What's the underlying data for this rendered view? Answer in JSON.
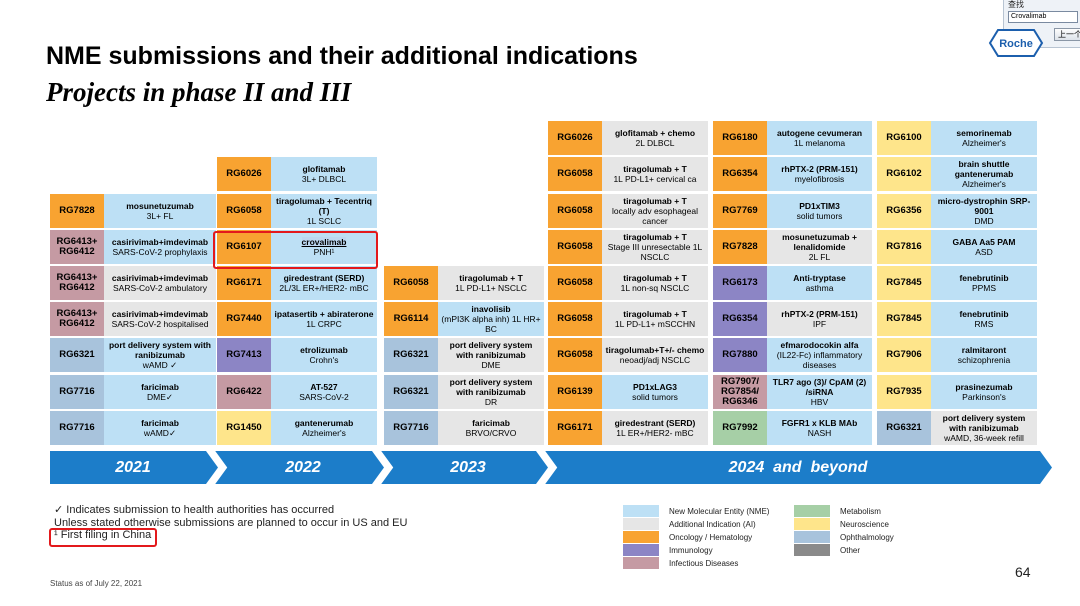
{
  "slide": {
    "title": "NME submissions and their additional indications",
    "subtitle": "Projects in phase II and III",
    "page_number": "64",
    "status": "Status as of July 22, 2021"
  },
  "find_toolbar": {
    "label": "查找",
    "query": "Crovalimab",
    "prev_button": "上一个"
  },
  "logo": {
    "text": "Roche"
  },
  "colors": {
    "nme": "#bde0f5",
    "ai": "#e6e6e6",
    "oncology": "#f8a331",
    "immunology": "#8c85c5",
    "infectious": "#c59aa3",
    "metabolism": "#a6cfa6",
    "neuroscience": "#fee58b",
    "ophthalmology": "#a8c3dc",
    "other": "#8a8a8a",
    "timeline": "#1c7dc9",
    "highlight": "#e3191c"
  },
  "timeline": [
    "2021",
    "2022",
    "2023",
    "2024  and  beyond"
  ],
  "col2021": [
    {
      "code": "RG7828",
      "name": "mosunetuzumab",
      "detail": "3L+ FL",
      "area": "oncology",
      "kind": "nme"
    },
    {
      "code": "RG6413+ RG6412",
      "name": "casirivimab+imdevimab",
      "detail": "SARS-CoV-2 prophylaxis",
      "area": "infectious",
      "kind": "nme"
    },
    {
      "code": "RG6413+ RG6412",
      "name": "casirivimab+imdevimab",
      "detail": "SARS-CoV-2 ambulatory",
      "area": "infectious",
      "kind": "ai"
    },
    {
      "code": "RG6413+ RG6412",
      "name": "casirivimab+imdevimab",
      "detail": "SARS-CoV-2 hospitalised",
      "area": "infectious",
      "kind": "ai"
    },
    {
      "code": "RG6321",
      "name": "port delivery system with ranibizumab",
      "detail": "wAMD ✓",
      "area": "ophthalmology",
      "kind": "nme"
    },
    {
      "code": "RG7716",
      "name": "faricimab",
      "detail": "DME✓",
      "area": "ophthalmology",
      "kind": "nme"
    },
    {
      "code": "RG7716",
      "name": "faricimab",
      "detail": "wAMD✓",
      "area": "ophthalmology",
      "kind": "nme"
    }
  ],
  "col2022": [
    {
      "code": "RG6026",
      "name": "glofitamab",
      "detail": "3L+ DLBCL",
      "area": "oncology",
      "kind": "nme"
    },
    {
      "code": "RG6058",
      "name": "tiragolumab + Tecentriq (T)",
      "detail": "1L SCLC",
      "area": "oncology",
      "kind": "nme"
    },
    {
      "code": "RG6107",
      "name": "crovalimab",
      "detail": "PNH¹",
      "area": "oncology",
      "kind": "nme",
      "highlight": true
    },
    {
      "code": "RG6171",
      "name": "giredestrant (SERD)",
      "detail": "2L/3L ER+/HER2- mBC",
      "area": "oncology",
      "kind": "nme"
    },
    {
      "code": "RG7440",
      "name": "ipatasertib + abiraterone",
      "detail": "1L CRPC",
      "area": "oncology",
      "kind": "nme"
    },
    {
      "code": "RG7413",
      "name": "etrolizumab",
      "detail": "Crohn's",
      "area": "immunology",
      "kind": "nme"
    },
    {
      "code": "RG6422",
      "name": "AT-527",
      "detail": "SARS-CoV-2",
      "area": "infectious",
      "kind": "nme"
    },
    {
      "code": "RG1450",
      "name": "gantenerumab",
      "detail": "Alzheimer's",
      "area": "neuroscience",
      "kind": "nme"
    }
  ],
  "col2023": [
    {
      "code": "RG6058",
      "name": "tiragolumab + T",
      "detail": "1L PD-L1+ NSCLC",
      "area": "oncology",
      "kind": "ai"
    },
    {
      "code": "RG6114",
      "name": "inavolisib",
      "detail": "(mPI3K alpha inh) 1L HR+ BC",
      "area": "oncology",
      "kind": "nme"
    },
    {
      "code": "RG6321",
      "name": "port delivery system with ranibizumab",
      "detail": "DME",
      "area": "ophthalmology",
      "kind": "ai"
    },
    {
      "code": "RG6321",
      "name": "port delivery system with ranibizumab",
      "detail": "DR",
      "area": "ophthalmology",
      "kind": "ai"
    },
    {
      "code": "RG7716",
      "name": "faricimab",
      "detail": "BRVO/CRVO",
      "area": "ophthalmology",
      "kind": "ai"
    }
  ],
  "col2024a": [
    {
      "code": "RG6026",
      "name": "glofitamab + chemo",
      "detail": "2L DLBCL",
      "area": "oncology",
      "kind": "ai"
    },
    {
      "code": "RG6058",
      "name": "tiragolumab + T",
      "detail": "1L PD-L1+ cervical ca",
      "area": "oncology",
      "kind": "ai"
    },
    {
      "code": "RG6058",
      "name": "tiragolumab + T",
      "detail": "locally adv esophageal cancer",
      "area": "oncology",
      "kind": "ai"
    },
    {
      "code": "RG6058",
      "name": "tiragolumab + T",
      "detail": "Stage III unresectable 1L NSCLC",
      "area": "oncology",
      "kind": "ai"
    },
    {
      "code": "RG6058",
      "name": "tiragolumab + T",
      "detail": "1L non-sq NSCLC",
      "area": "oncology",
      "kind": "ai"
    },
    {
      "code": "RG6058",
      "name": "tiragolumab + T",
      "detail": "1L PD-L1+ mSCCHN",
      "area": "oncology",
      "kind": "ai"
    },
    {
      "code": "RG6058",
      "name": "tiragolumab+T+/- chemo",
      "detail": "neoadj/adj NSCLC",
      "area": "oncology",
      "kind": "ai"
    },
    {
      "code": "RG6139",
      "name": "PD1xLAG3",
      "detail": "solid tumors",
      "area": "oncology",
      "kind": "nme"
    },
    {
      "code": "RG6171",
      "name": "giredestrant (SERD)",
      "detail": "1L ER+/HER2- mBC",
      "area": "oncology",
      "kind": "ai"
    }
  ],
  "col2024b": [
    {
      "code": "RG6180",
      "name": "autogene cevumeran",
      "detail": "1L melanoma",
      "area": "oncology",
      "kind": "nme"
    },
    {
      "code": "RG6354",
      "name": "rhPTX-2 (PRM-151)",
      "detail": "myelofibrosis",
      "area": "oncology",
      "kind": "nme"
    },
    {
      "code": "RG7769",
      "name": "PD1xTIM3",
      "detail": "solid tumors",
      "area": "oncology",
      "kind": "nme"
    },
    {
      "code": "RG7828",
      "name": "mosunetuzumab + lenalidomide",
      "detail": "2L FL",
      "area": "oncology",
      "kind": "ai"
    },
    {
      "code": "RG6173",
      "name": "Anti-tryptase",
      "detail": "asthma",
      "area": "immunology",
      "kind": "nme"
    },
    {
      "code": "RG6354",
      "name": "rhPTX-2 (PRM-151)",
      "detail": "IPF",
      "area": "immunology",
      "kind": "ai"
    },
    {
      "code": "RG7880",
      "name": "efmarodocokin alfa",
      "detail": "(IL22-Fc) inflammatory diseases",
      "area": "immunology",
      "kind": "nme"
    },
    {
      "code": "RG7907/ RG7854/ RG6346",
      "name": "TLR7 ago (3)/ CpAM (2) /siRNA",
      "detail": "HBV",
      "area": "infectious",
      "kind": "nme"
    },
    {
      "code": "RG7992",
      "name": "FGFR1 x KLB MAb",
      "detail": "NASH",
      "area": "metabolism",
      "kind": "nme"
    }
  ],
  "col2024c": [
    {
      "code": "RG6100",
      "name": "semorinemab",
      "detail": "Alzheimer's",
      "area": "neuroscience",
      "kind": "nme"
    },
    {
      "code": "RG6102",
      "name": "brain shuttle gantenerumab",
      "detail": "Alzheimer's",
      "area": "neuroscience",
      "kind": "nme"
    },
    {
      "code": "RG6356",
      "name": "micro-dystrophin SRP-9001",
      "detail": "DMD",
      "area": "neuroscience",
      "kind": "nme"
    },
    {
      "code": "RG7816",
      "name": "GABA Aa5 PAM",
      "detail": "ASD",
      "area": "neuroscience",
      "kind": "nme"
    },
    {
      "code": "RG7845",
      "name": "fenebrutinib",
      "detail": "PPMS",
      "area": "neuroscience",
      "kind": "nme"
    },
    {
      "code": "RG7845",
      "name": "fenebrutinib",
      "detail": "RMS",
      "area": "neuroscience",
      "kind": "nme"
    },
    {
      "code": "RG7906",
      "name": "ralmitaront",
      "detail": "schizophrenia",
      "area": "neuroscience",
      "kind": "nme"
    },
    {
      "code": "RG7935",
      "name": "prasinezumab",
      "detail": "Parkinson's",
      "area": "neuroscience",
      "kind": "nme"
    },
    {
      "code": "RG6321",
      "name": "port delivery system with ranibizumab",
      "detail": "wAMD, 36-week refill",
      "area": "ophthalmology",
      "kind": "ai"
    }
  ],
  "footnotes": {
    "line1": "✓ Indicates submission to health authorities has occurred",
    "line2": "Unless stated otherwise submissions are planned to occur in US and EU",
    "line3": "¹ First filing in China"
  },
  "legend": [
    {
      "key": "nme",
      "label": "New Molecular Entity (NME)"
    },
    {
      "key": "ai",
      "label": "Additional Indication (AI)"
    },
    {
      "key": "oncology",
      "label": "Oncology / Hematology"
    },
    {
      "key": "immunology",
      "label": "Immunology"
    },
    {
      "key": "infectious",
      "label": "Infectious Diseases"
    },
    {
      "key": "metabolism",
      "label": "Metabolism"
    },
    {
      "key": "neuroscience",
      "label": "Neuroscience"
    },
    {
      "key": "ophthalmology",
      "label": "Ophthalmology"
    },
    {
      "key": "other",
      "label": "Other"
    }
  ]
}
